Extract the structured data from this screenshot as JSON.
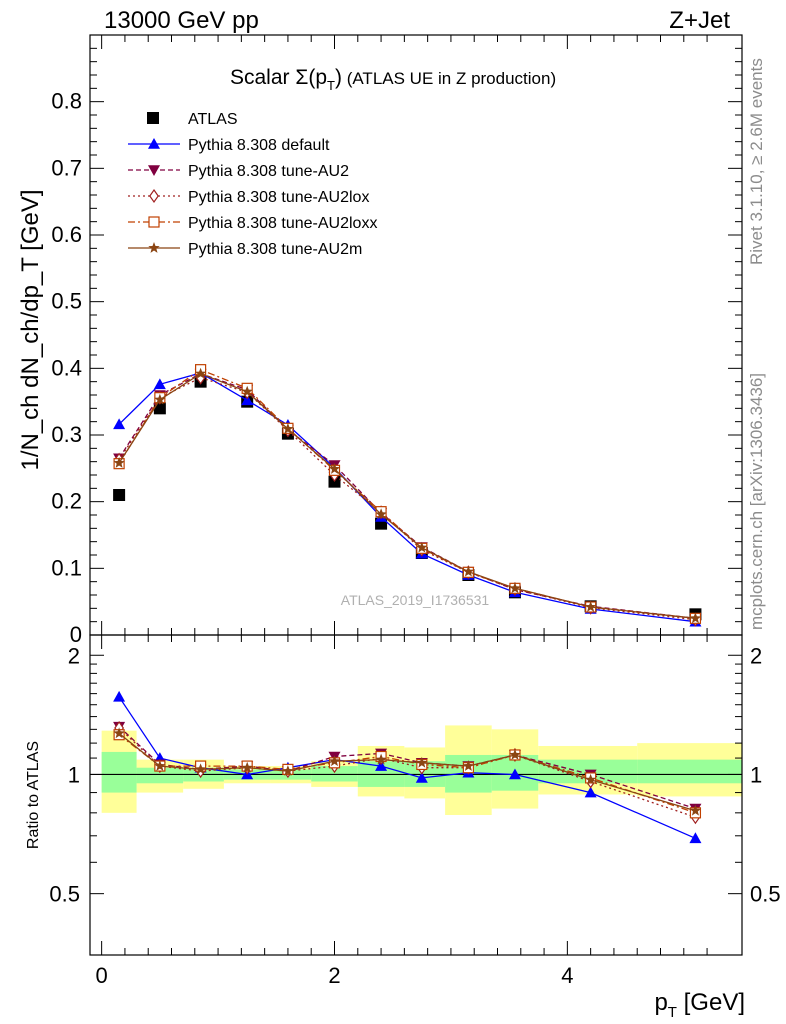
{
  "header": {
    "left": "13000 GeV pp",
    "right": "Z+Jet"
  },
  "side_labels": {
    "rivet": "Rivet 3.1.10, ≥ 2.6M events",
    "mcplots": "mcplots.cern.ch [arXiv:1306.3436]"
  },
  "watermark": "ATLAS_2019_I1736531",
  "chart_data": [
    {
      "type": "line",
      "title_main": "Scalar Σ(p",
      "title_sub": "T",
      "title_close": ")",
      "title_rest": " (ATLAS UE in Z production)",
      "ylabel": "1/N_ch dN_ch/dp_T [GeV]",
      "ylim": [
        0,
        0.9
      ],
      "yticks": [
        "0",
        "0.1",
        "0.2",
        "0.3",
        "0.4",
        "0.5",
        "0.6",
        "0.7",
        "0.8"
      ],
      "x": [
        0.15,
        0.5,
        0.85,
        1.25,
        1.6,
        2.0,
        2.4,
        2.75,
        3.15,
        3.55,
        4.2,
        5.1
      ],
      "xlim": [
        -0.1,
        5.5
      ],
      "legend_position": "top-left",
      "series": [
        {
          "name": "ATLAS",
          "color": "#000000",
          "style": "data",
          "values": [
            0.21,
            0.34,
            0.38,
            0.35,
            0.302,
            0.23,
            0.167,
            0.123,
            0.09,
            0.064,
            0.043,
            0.031
          ]
        },
        {
          "name": "Pythia 8.308 default",
          "color": "#0000ff",
          "style": "solid",
          "marker": "triangle-up",
          "values": [
            0.316,
            0.376,
            0.393,
            0.352,
            0.315,
            0.251,
            0.177,
            0.122,
            0.09,
            0.064,
            0.039,
            0.02
          ]
        },
        {
          "name": "Pythia 8.308 tune-AU2",
          "color": "#800040",
          "style": "dashed",
          "marker": "triangle-down",
          "values": [
            0.265,
            0.36,
            0.392,
            0.368,
            0.308,
            0.255,
            0.183,
            0.132,
            0.095,
            0.068,
            0.043,
            0.025
          ]
        },
        {
          "name": "Pythia 8.308 tune-AU2lox",
          "color": "#a02020",
          "style": "dotted",
          "marker": "diamond-open",
          "values": [
            0.263,
            0.356,
            0.386,
            0.364,
            0.307,
            0.24,
            0.184,
            0.128,
            0.094,
            0.069,
            0.041,
            0.023
          ]
        },
        {
          "name": "Pythia 8.308 tune-AU2loxx",
          "color": "#c04000",
          "style": "dashdot",
          "marker": "square-open",
          "values": [
            0.257,
            0.356,
            0.398,
            0.37,
            0.31,
            0.247,
            0.185,
            0.13,
            0.094,
            0.07,
            0.042,
            0.025
          ]
        },
        {
          "name": "Pythia 8.308 tune-AU2m",
          "color": "#8b4513",
          "style": "solid",
          "marker": "star",
          "values": [
            0.258,
            0.353,
            0.392,
            0.365,
            0.309,
            0.249,
            0.181,
            0.131,
            0.095,
            0.07,
            0.042,
            0.025
          ]
        }
      ]
    },
    {
      "type": "line",
      "ylabel": "Ratio to ATLAS",
      "xlabel_main": "p",
      "xlabel_sub": "T",
      "xlabel_rest": " [GeV]",
      "ylim": [
        0.35,
        2.25
      ],
      "yticks": [
        "0.5",
        "1",
        "2"
      ],
      "xticks": [
        "0",
        "2",
        "4"
      ],
      "x": [
        0.15,
        0.5,
        0.85,
        1.25,
        1.6,
        2.0,
        2.4,
        2.75,
        3.15,
        3.55,
        4.2,
        5.1
      ],
      "bands": {
        "edges": [
          0,
          0.3,
          0.7,
          1.05,
          1.45,
          1.8,
          2.2,
          2.6,
          2.95,
          3.35,
          3.75,
          4.6,
          5.5
        ],
        "green_low": [
          0.9,
          0.95,
          0.96,
          0.97,
          0.97,
          0.96,
          0.93,
          0.93,
          0.9,
          0.91,
          0.95,
          0.95
        ],
        "green_high": [
          1.14,
          1.04,
          1.04,
          1.03,
          1.03,
          1.05,
          1.08,
          1.08,
          1.12,
          1.12,
          1.09,
          1.09
        ],
        "yellow_low": [
          0.8,
          0.9,
          0.92,
          0.95,
          0.95,
          0.93,
          0.88,
          0.87,
          0.79,
          0.82,
          0.89,
          0.88
        ],
        "yellow_high": [
          1.29,
          1.09,
          1.09,
          1.05,
          1.05,
          1.08,
          1.18,
          1.17,
          1.33,
          1.3,
          1.18,
          1.2
        ]
      },
      "series": [
        {
          "name": "Pythia 8.308 default",
          "color": "#0000ff",
          "style": "solid",
          "marker": "triangle-up",
          "values": [
            1.57,
            1.1,
            1.04,
            1.0,
            1.04,
            1.09,
            1.05,
            0.98,
            1.01,
            1.0,
            0.9,
            0.69
          ]
        },
        {
          "name": "Pythia 8.308 tune-AU2",
          "color": "#800040",
          "style": "dashed",
          "marker": "triangle-down",
          "values": [
            1.32,
            1.06,
            1.03,
            1.05,
            1.02,
            1.11,
            1.13,
            1.07,
            1.05,
            1.12,
            1.0,
            0.82
          ]
        },
        {
          "name": "Pythia 8.308 tune-AU2lox",
          "color": "#a02020",
          "style": "dotted",
          "marker": "diamond-open",
          "values": [
            1.31,
            1.05,
            1.02,
            1.04,
            1.02,
            1.05,
            1.1,
            1.04,
            1.04,
            1.12,
            0.96,
            0.78
          ]
        },
        {
          "name": "Pythia 8.308 tune-AU2loxx",
          "color": "#c04000",
          "style": "dashdot",
          "marker": "square-open",
          "values": [
            1.26,
            1.05,
            1.05,
            1.05,
            1.03,
            1.07,
            1.11,
            1.06,
            1.04,
            1.12,
            0.98,
            0.8
          ]
        },
        {
          "name": "Pythia 8.308 tune-AU2m",
          "color": "#8b4513",
          "style": "solid",
          "marker": "star",
          "values": [
            1.27,
            1.05,
            1.03,
            1.04,
            1.02,
            1.08,
            1.09,
            1.07,
            1.05,
            1.12,
            0.97,
            0.81
          ]
        }
      ]
    }
  ]
}
